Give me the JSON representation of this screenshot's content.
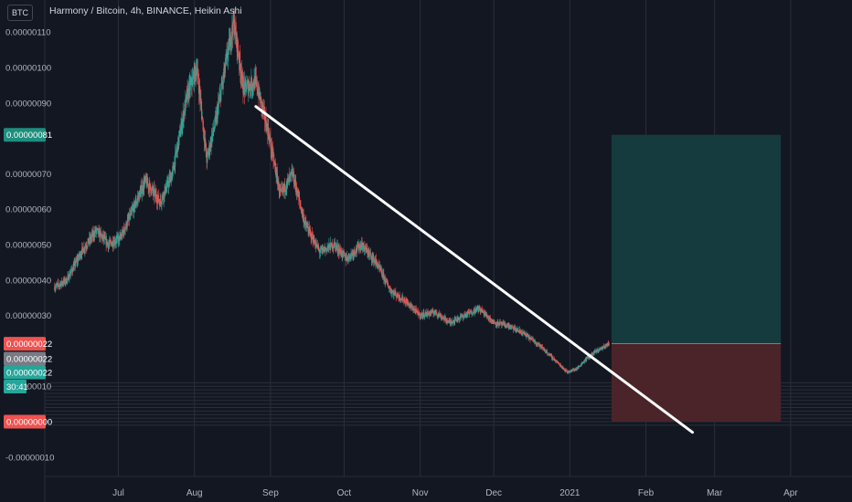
{
  "header": {
    "symbol": "BTC",
    "title": "Harmony / Bitcoin, 4h, BINANCE, Heikin Ashi"
  },
  "colors": {
    "background": "#131722",
    "grid": "#2a2e39",
    "up": "#26a69a",
    "down": "#ef5350",
    "target_zone": "#163b3e",
    "stop_zone": "#4a2429",
    "trendline": "#ffffff"
  },
  "price_labels": {
    "target": "0.00000081",
    "entry": "0.00000022",
    "last_price": "0.00000022",
    "prev_close": "0.00000022",
    "countdown": "30:41",
    "stop": "0.00000000"
  },
  "chart_data": {
    "type": "candlestick",
    "style": "Heikin Ashi",
    "timeframe": "4h",
    "x_ticks": [
      "Jul",
      "Aug",
      "Sep",
      "Oct",
      "Nov",
      "Dec",
      "2021",
      "Feb",
      "Mar",
      "Apr"
    ],
    "y_ticks": [
      "0.00000110",
      "0.00000100",
      "0.00000090",
      "0.00000070",
      "0.00000060",
      "0.00000050",
      "0.00000040",
      "0.00000030",
      "0.00000010",
      "-0.00000010"
    ],
    "ylim": [
      -1.7e-07,
      1.19e-06
    ],
    "grid": true,
    "price_path": [
      [
        "2020-06-05",
        3.8e-07
      ],
      [
        "2020-06-10",
        4e-07
      ],
      [
        "2020-06-16",
        4.8e-07
      ],
      [
        "2020-06-22",
        5.4e-07
      ],
      [
        "2020-06-27",
        5e-07
      ],
      [
        "2020-07-02",
        5.2e-07
      ],
      [
        "2020-07-07",
        6e-07
      ],
      [
        "2020-07-12",
        6.8e-07
      ],
      [
        "2020-07-18",
        6.2e-07
      ],
      [
        "2020-07-23",
        7e-07
      ],
      [
        "2020-07-29",
        9.2e-07
      ],
      [
        "2020-08-02",
        1e-06
      ],
      [
        "2020-08-06",
        7.4e-07
      ],
      [
        "2020-08-10",
        8.6e-07
      ],
      [
        "2020-08-14",
        1.02e-06
      ],
      [
        "2020-08-17",
        1.13e-06
      ],
      [
        "2020-08-21",
        9.4e-07
      ],
      [
        "2020-08-26",
        9.6e-07
      ],
      [
        "2020-08-31",
        8.2e-07
      ],
      [
        "2020-09-05",
        6.4e-07
      ],
      [
        "2020-09-10",
        7e-07
      ],
      [
        "2020-09-15",
        5.6e-07
      ],
      [
        "2020-09-21",
        4.8e-07
      ],
      [
        "2020-09-27",
        5e-07
      ],
      [
        "2020-10-02",
        4.6e-07
      ],
      [
        "2020-10-08",
        5e-07
      ],
      [
        "2020-10-14",
        4.5e-07
      ],
      [
        "2020-10-20",
        3.7e-07
      ],
      [
        "2020-10-26",
        3.4e-07
      ],
      [
        "2020-11-01",
        3e-07
      ],
      [
        "2020-11-07",
        3.1e-07
      ],
      [
        "2020-11-13",
        2.8e-07
      ],
      [
        "2020-11-19",
        3e-07
      ],
      [
        "2020-11-25",
        3.2e-07
      ],
      [
        "2020-12-01",
        2.8e-07
      ],
      [
        "2020-12-07",
        2.7e-07
      ],
      [
        "2020-12-13",
        2.5e-07
      ],
      [
        "2020-12-19",
        2.2e-07
      ],
      [
        "2020-12-25",
        1.8e-07
      ],
      [
        "2020-12-31",
        1.4e-07
      ],
      [
        "2021-01-04",
        1.5e-07
      ],
      [
        "2021-01-08",
        1.8e-07
      ],
      [
        "2021-01-12",
        2e-07
      ],
      [
        "2021-01-17",
        2.2e-07
      ]
    ],
    "trendline": {
      "start": [
        "2020-08-26",
        8.9e-07
      ],
      "end": [
        "2021-02-20",
        -3e-08
      ]
    },
    "long_position": {
      "start": "2021-01-18",
      "end": "2021-03-28",
      "entry": 2.2e-07,
      "target": 8.1e-07,
      "stop": 0.0
    }
  }
}
